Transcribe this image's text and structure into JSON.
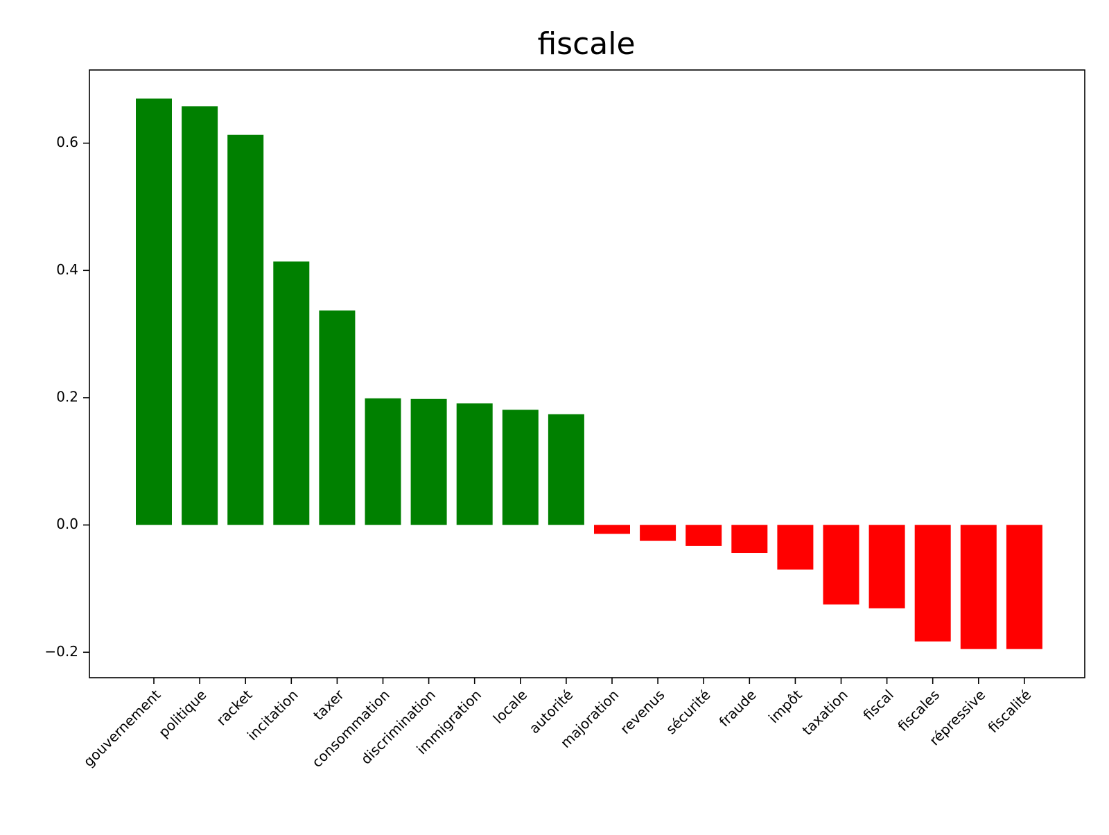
{
  "chart_data": {
    "type": "bar",
    "title": "fiscale",
    "xlabel": "",
    "ylabel": "",
    "categories": [
      "gouvernement",
      "politique",
      "racket",
      "incitation",
      "taxer",
      "consommation",
      "discrimination",
      "immigration",
      "locale",
      "autorité",
      "majoration",
      "revenus",
      "sécurité",
      "fraude",
      "impôt",
      "taxation",
      "fiscal",
      "fiscales",
      "répressive",
      "fiscalité"
    ],
    "values": [
      0.67,
      0.658,
      0.613,
      0.414,
      0.337,
      0.199,
      0.198,
      0.191,
      0.181,
      0.174,
      -0.014,
      -0.025,
      -0.033,
      -0.044,
      -0.07,
      -0.125,
      -0.131,
      -0.183,
      -0.195,
      -0.195
    ],
    "ylim": [
      -0.24,
      0.715
    ],
    "yticks": [
      -0.2,
      0.0,
      0.2,
      0.4,
      0.6
    ],
    "ytick_labels": [
      "−0.2",
      "0.0",
      "0.2",
      "0.4",
      "0.6"
    ],
    "grid": false,
    "colors": {
      "positive": "#008000",
      "negative": "#ff0000"
    }
  }
}
